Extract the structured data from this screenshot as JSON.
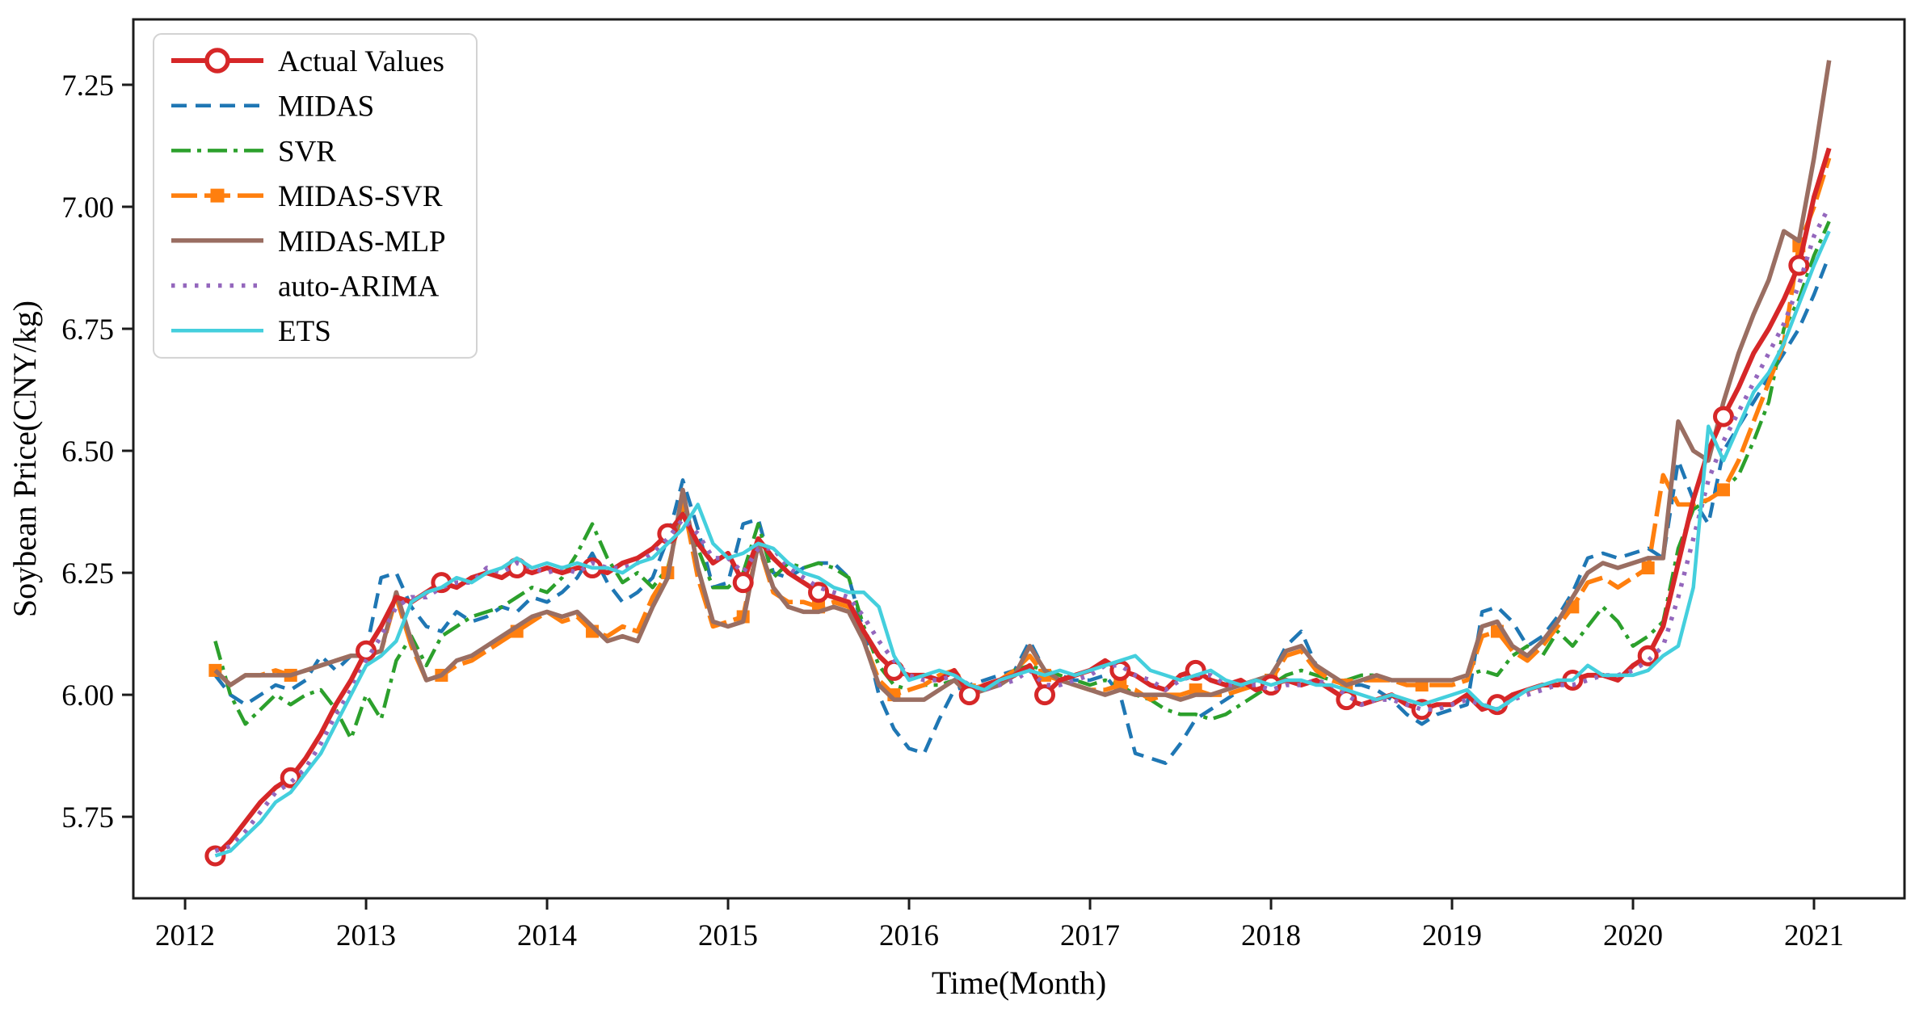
{
  "figure": {
    "background": "#ffffff",
    "frame_color": "#1c1c1c"
  },
  "chart_data": {
    "type": "line",
    "title": "",
    "xlabel": "Time(Month)",
    "ylabel": "Soybean Price(CNY/kg)",
    "grid": false,
    "legend_position": "upper left",
    "x_start_year": 2012,
    "x_start_month": 3,
    "xlim": [
      2011.714,
      2021.5
    ],
    "ylim": [
      5.583,
      7.384
    ],
    "x_ticks": [
      2012,
      2013,
      2014,
      2015,
      2016,
      2017,
      2018,
      2019,
      2020,
      2021
    ],
    "x_tick_labels": [
      "2012",
      "2013",
      "2014",
      "2015",
      "2016",
      "2017",
      "2018",
      "2019",
      "2020",
      "2021"
    ],
    "y_ticks": [
      5.75,
      6.0,
      6.25,
      6.5,
      6.75,
      7.0,
      7.25
    ],
    "y_tick_labels": [
      "5.75",
      "6.00",
      "6.25",
      "6.50",
      "6.75",
      "7.00",
      "7.25"
    ],
    "series": [
      {
        "name": "Actual Values",
        "color": "#d62728",
        "width": 6,
        "dash": null,
        "marker": "circle",
        "marker_fill": "#ffffff",
        "markevery": 5,
        "zorder": 5,
        "values": [
          5.67,
          5.7,
          5.74,
          5.78,
          5.81,
          5.83,
          5.87,
          5.92,
          5.98,
          6.03,
          6.09,
          6.14,
          6.2,
          6.19,
          6.21,
          6.23,
          6.22,
          6.24,
          6.25,
          6.24,
          6.26,
          6.25,
          6.26,
          6.25,
          6.26,
          6.26,
          6.25,
          6.27,
          6.28,
          6.3,
          6.33,
          6.37,
          6.31,
          6.27,
          6.29,
          6.23,
          6.32,
          6.28,
          6.25,
          6.23,
          6.21,
          6.2,
          6.19,
          6.13,
          6.08,
          6.05,
          6.04,
          6.04,
          6.03,
          6.05,
          6.0,
          6.02,
          6.03,
          6.04,
          6.06,
          6.0,
          6.03,
          6.04,
          6.05,
          6.07,
          6.05,
          6.04,
          6.02,
          6.01,
          6.04,
          6.05,
          6.03,
          6.02,
          6.03,
          6.01,
          6.02,
          6.03,
          6.02,
          6.03,
          6.01,
          5.99,
          5.98,
          5.99,
          6.0,
          5.98,
          5.97,
          5.98,
          5.98,
          6.0,
          5.97,
          5.98,
          6.0,
          6.01,
          6.02,
          6.02,
          6.03,
          6.04,
          6.04,
          6.03,
          6.06,
          6.08,
          6.14,
          6.27,
          6.4,
          6.5,
          6.57,
          6.63,
          6.7,
          6.75,
          6.81,
          6.88,
          7.02,
          7.12
        ]
      },
      {
        "name": "MIDAS",
        "color": "#1f77b4",
        "width": 4.5,
        "dash": "19 11",
        "marker": null,
        "markevery": 0,
        "zorder": 1,
        "values": [
          6.04,
          6.0,
          5.98,
          6.0,
          6.02,
          6.01,
          6.03,
          6.08,
          6.05,
          6.08,
          6.09,
          6.24,
          6.25,
          6.18,
          6.14,
          6.13,
          6.17,
          6.15,
          6.16,
          6.18,
          6.17,
          6.2,
          6.19,
          6.21,
          6.24,
          6.29,
          6.23,
          6.19,
          6.21,
          6.24,
          6.32,
          6.44,
          6.34,
          6.22,
          6.23,
          6.35,
          6.36,
          6.25,
          6.24,
          6.26,
          6.27,
          6.27,
          6.24,
          6.13,
          6.0,
          5.93,
          5.89,
          5.88,
          5.95,
          6.01,
          6.02,
          6.03,
          6.04,
          6.05,
          6.11,
          6.05,
          6.04,
          6.03,
          6.03,
          6.04,
          6.0,
          5.88,
          5.87,
          5.86,
          5.9,
          5.95,
          5.97,
          5.99,
          6.01,
          6.02,
          6.04,
          6.1,
          6.13,
          6.06,
          6.04,
          6.02,
          6.02,
          6.01,
          5.99,
          5.96,
          5.94,
          5.96,
          5.97,
          5.98,
          6.17,
          6.18,
          6.15,
          6.1,
          6.12,
          6.16,
          6.21,
          6.28,
          6.29,
          6.28,
          6.29,
          6.3,
          6.28,
          6.48,
          6.4,
          6.35,
          6.5,
          6.55,
          6.6,
          6.65,
          6.7,
          6.75,
          6.82,
          6.9
        ]
      },
      {
        "name": "SVR",
        "color": "#2ca02c",
        "width": 4.5,
        "dash": "24 8 5 8",
        "marker": null,
        "markevery": 0,
        "zorder": 2,
        "values": [
          6.11,
          6.0,
          5.94,
          5.97,
          6.0,
          5.98,
          6.0,
          6.01,
          5.97,
          5.91,
          6.0,
          5.95,
          6.07,
          6.12,
          6.06,
          6.12,
          6.14,
          6.16,
          6.17,
          6.18,
          6.2,
          6.22,
          6.21,
          6.24,
          6.29,
          6.35,
          6.28,
          6.23,
          6.25,
          6.22,
          6.26,
          6.38,
          6.3,
          6.22,
          6.22,
          6.25,
          6.35,
          6.24,
          6.27,
          6.26,
          6.27,
          6.26,
          6.24,
          6.14,
          6.06,
          6.02,
          6.01,
          6.02,
          6.02,
          6.03,
          6.01,
          6.02,
          6.03,
          6.05,
          6.06,
          6.05,
          6.04,
          6.03,
          6.02,
          6.03,
          6.02,
          6.0,
          5.99,
          5.97,
          5.96,
          5.96,
          5.95,
          5.96,
          5.98,
          6.0,
          6.02,
          6.04,
          6.05,
          6.04,
          6.03,
          6.03,
          6.04,
          6.04,
          6.03,
          6.03,
          6.03,
          6.03,
          6.03,
          6.04,
          6.05,
          6.04,
          6.08,
          6.1,
          6.08,
          6.13,
          6.1,
          6.14,
          6.18,
          6.15,
          6.1,
          6.12,
          6.15,
          6.3,
          6.38,
          6.4,
          6.42,
          6.45,
          6.52,
          6.6,
          6.75,
          6.81,
          6.9,
          6.97
        ]
      },
      {
        "name": "MIDAS-SVR",
        "color": "#ff7f0e",
        "width": 5.5,
        "dash": "32 9",
        "marker": "square",
        "marker_fill": "#ff7f0e",
        "markevery": 5,
        "zorder": 3,
        "values": [
          6.05,
          6.02,
          6.04,
          6.04,
          6.05,
          6.04,
          6.05,
          6.06,
          6.07,
          6.08,
          6.08,
          6.09,
          6.2,
          6.1,
          6.03,
          6.04,
          6.06,
          6.07,
          6.09,
          6.11,
          6.13,
          6.15,
          6.17,
          6.15,
          6.16,
          6.13,
          6.12,
          6.14,
          6.13,
          6.2,
          6.25,
          6.4,
          6.24,
          6.14,
          6.15,
          6.16,
          6.31,
          6.21,
          6.19,
          6.19,
          6.18,
          6.19,
          6.18,
          6.11,
          6.03,
          6.0,
          6.01,
          6.02,
          6.04,
          6.05,
          6.01,
          6.02,
          6.03,
          6.05,
          6.08,
          6.04,
          6.03,
          6.02,
          6.01,
          6.01,
          6.02,
          6.01,
          5.99,
          6.0,
          6.0,
          6.01,
          6.0,
          6.0,
          6.01,
          6.02,
          6.03,
          6.08,
          6.09,
          6.05,
          6.03,
          6.02,
          6.03,
          6.03,
          6.03,
          6.02,
          6.02,
          6.02,
          6.02,
          6.03,
          6.12,
          6.13,
          6.09,
          6.07,
          6.1,
          6.14,
          6.18,
          6.23,
          6.24,
          6.22,
          6.24,
          6.26,
          6.45,
          6.39,
          6.39,
          6.4,
          6.42,
          6.48,
          6.56,
          6.64,
          6.72,
          6.92,
          7.0,
          7.1
        ]
      },
      {
        "name": "MIDAS-MLP",
        "color": "#9a6e62",
        "width": 5.5,
        "dash": null,
        "marker": null,
        "markevery": 0,
        "zorder": 4,
        "values": [
          6.05,
          6.02,
          6.04,
          6.04,
          6.04,
          6.04,
          6.05,
          6.06,
          6.07,
          6.08,
          6.08,
          6.09,
          6.21,
          6.11,
          6.03,
          6.04,
          6.07,
          6.08,
          6.1,
          6.12,
          6.14,
          6.16,
          6.17,
          6.16,
          6.17,
          6.14,
          6.11,
          6.12,
          6.11,
          6.18,
          6.24,
          6.42,
          6.26,
          6.15,
          6.14,
          6.15,
          6.31,
          6.22,
          6.18,
          6.17,
          6.17,
          6.18,
          6.17,
          6.11,
          6.02,
          5.99,
          5.99,
          5.99,
          6.01,
          6.03,
          6.0,
          6.01,
          6.02,
          6.04,
          6.1,
          6.05,
          6.03,
          6.02,
          6.01,
          6.0,
          6.01,
          6.0,
          6.0,
          6.0,
          5.99,
          6.0,
          6.0,
          6.01,
          6.02,
          6.03,
          6.04,
          6.09,
          6.1,
          6.06,
          6.04,
          6.02,
          6.03,
          6.04,
          6.03,
          6.03,
          6.03,
          6.03,
          6.03,
          6.04,
          6.14,
          6.15,
          6.1,
          6.08,
          6.11,
          6.15,
          6.2,
          6.25,
          6.27,
          6.26,
          6.27,
          6.28,
          6.28,
          6.56,
          6.5,
          6.48,
          6.6,
          6.7,
          6.78,
          6.85,
          6.95,
          6.93,
          7.1,
          7.3
        ]
      },
      {
        "name": "auto-ARIMA",
        "color": "#9467bd",
        "width": 5.5,
        "dash": "4.5 10",
        "marker": null,
        "markevery": 0,
        "zorder": 6,
        "values": [
          5.68,
          5.69,
          5.72,
          5.76,
          5.8,
          5.82,
          5.85,
          5.9,
          5.96,
          6.01,
          6.07,
          6.12,
          6.18,
          6.2,
          6.2,
          6.22,
          6.23,
          6.23,
          6.26,
          6.25,
          6.27,
          6.26,
          6.25,
          6.26,
          6.25,
          6.27,
          6.26,
          6.26,
          6.27,
          6.29,
          6.32,
          6.36,
          6.33,
          6.28,
          6.28,
          6.25,
          6.3,
          6.3,
          6.26,
          6.24,
          6.22,
          6.21,
          6.2,
          6.16,
          6.11,
          6.07,
          6.04,
          6.03,
          6.03,
          6.04,
          6.02,
          6.01,
          6.02,
          6.03,
          6.05,
          6.02,
          6.02,
          6.03,
          6.04,
          6.06,
          6.06,
          6.04,
          6.03,
          6.01,
          6.03,
          6.04,
          6.04,
          6.02,
          6.02,
          6.02,
          6.01,
          6.02,
          6.02,
          6.03,
          6.02,
          6.0,
          5.98,
          5.99,
          5.99,
          5.98,
          5.97,
          5.97,
          5.98,
          5.99,
          5.98,
          5.97,
          5.99,
          6.0,
          6.01,
          6.02,
          6.02,
          6.03,
          6.04,
          6.04,
          6.05,
          6.07,
          6.1,
          6.2,
          6.32,
          6.44,
          6.52,
          6.58,
          6.64,
          6.7,
          6.76,
          6.84,
          6.94,
          7.0
        ]
      },
      {
        "name": "ETS",
        "color": "#44cfdd",
        "width": 4.5,
        "dash": null,
        "marker": null,
        "markevery": 0,
        "zorder": 7,
        "values": [
          5.67,
          5.68,
          5.71,
          5.74,
          5.78,
          5.8,
          5.84,
          5.88,
          5.94,
          6.0,
          6.06,
          6.08,
          6.11,
          6.19,
          6.21,
          6.22,
          6.24,
          6.23,
          6.25,
          6.26,
          6.28,
          6.26,
          6.27,
          6.26,
          6.27,
          6.26,
          6.26,
          6.25,
          6.27,
          6.28,
          6.31,
          6.34,
          6.39,
          6.31,
          6.28,
          6.29,
          6.31,
          6.3,
          6.27,
          6.25,
          6.24,
          6.22,
          6.21,
          6.21,
          6.18,
          6.08,
          6.03,
          6.04,
          6.05,
          6.04,
          6.02,
          6.01,
          6.03,
          6.04,
          6.05,
          6.04,
          6.05,
          6.04,
          6.05,
          6.06,
          6.07,
          6.08,
          6.05,
          6.04,
          6.03,
          6.04,
          6.05,
          6.03,
          6.02,
          6.03,
          6.02,
          6.03,
          6.03,
          6.02,
          6.02,
          6.01,
          6.0,
          5.99,
          6.0,
          5.99,
          5.98,
          5.99,
          6.0,
          6.01,
          5.98,
          5.97,
          5.99,
          6.01,
          6.02,
          6.03,
          6.03,
          6.06,
          6.04,
          6.04,
          6.04,
          6.05,
          6.08,
          6.1,
          6.22,
          6.55,
          6.48,
          6.55,
          6.62,
          6.66,
          6.72,
          6.8,
          6.88,
          6.95
        ]
      }
    ]
  }
}
